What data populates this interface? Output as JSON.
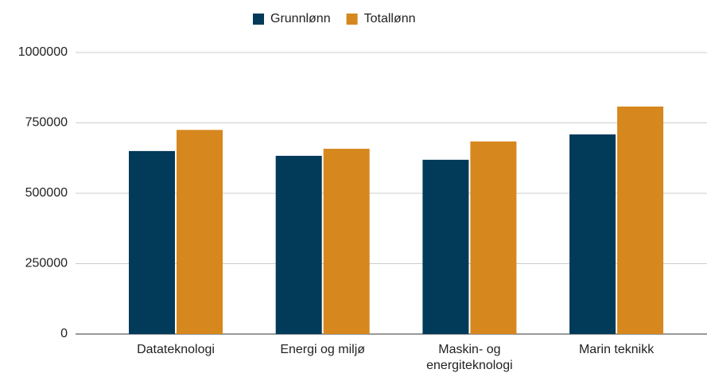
{
  "chart_data": {
    "type": "bar",
    "categories": [
      "Datateknologi",
      "Energi og miljø",
      "Maskin- og energiteknologi",
      "Marin teknikk"
    ],
    "series": [
      {
        "name": "Grunnlønn",
        "color": "#023a5a",
        "values": [
          650000,
          633000,
          619000,
          709000
        ]
      },
      {
        "name": "Totallønn",
        "color": "#d6871d",
        "values": [
          725000,
          658000,
          684000,
          808000
        ]
      }
    ],
    "ylim": [
      0,
      1000000
    ],
    "yticks": [
      0,
      250000,
      500000,
      750000,
      1000000
    ],
    "grid": true,
    "legend": "top"
  }
}
